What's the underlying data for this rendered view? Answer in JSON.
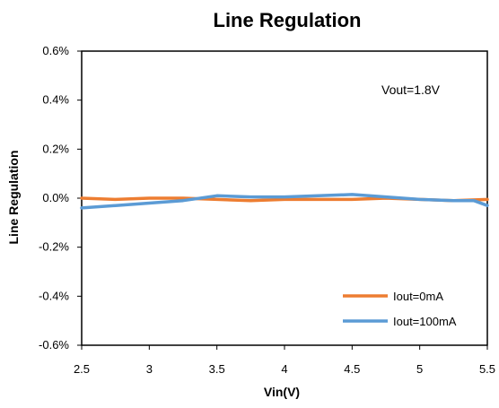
{
  "chart_data": {
    "type": "line",
    "title": "Line Regulation",
    "xlabel": "Vin(V)",
    "ylabel": "Line Regulation",
    "xlim": [
      2.5,
      5.5
    ],
    "ylim": [
      -0.6,
      0.6
    ],
    "x_ticks": [
      "2.5",
      "3",
      "3.5",
      "4",
      "4.5",
      "5",
      "5.5"
    ],
    "y_ticks": [
      "0.6%",
      "0.4%",
      "0.2%",
      "0.0%",
      "-0.2%",
      "-0.4%",
      "-0.6%"
    ],
    "grid": false,
    "legend_position": "bottom-right",
    "annotation": "Vout=1.8V",
    "series": [
      {
        "name": "Iout=0mA",
        "color": "#ED7D31",
        "x": [
          2.5,
          2.75,
          3.0,
          3.25,
          3.5,
          3.75,
          4.0,
          4.25,
          4.5,
          4.75,
          5.0,
          5.25,
          5.5
        ],
        "y": [
          0.0,
          -0.005,
          0.0,
          0.0,
          -0.005,
          -0.01,
          -0.005,
          -0.005,
          -0.005,
          0.0,
          -0.005,
          -0.01,
          -0.005
        ]
      },
      {
        "name": "Iout=100mA",
        "color": "#5B9BD5",
        "x": [
          2.5,
          2.75,
          3.0,
          3.25,
          3.5,
          3.75,
          4.0,
          4.25,
          4.5,
          4.75,
          5.0,
          5.25,
          5.4,
          5.5
        ],
        "y": [
          -0.04,
          -0.03,
          -0.02,
          -0.01,
          0.01,
          0.005,
          0.005,
          0.01,
          0.015,
          0.005,
          -0.005,
          -0.01,
          -0.01,
          -0.03
        ]
      }
    ]
  }
}
